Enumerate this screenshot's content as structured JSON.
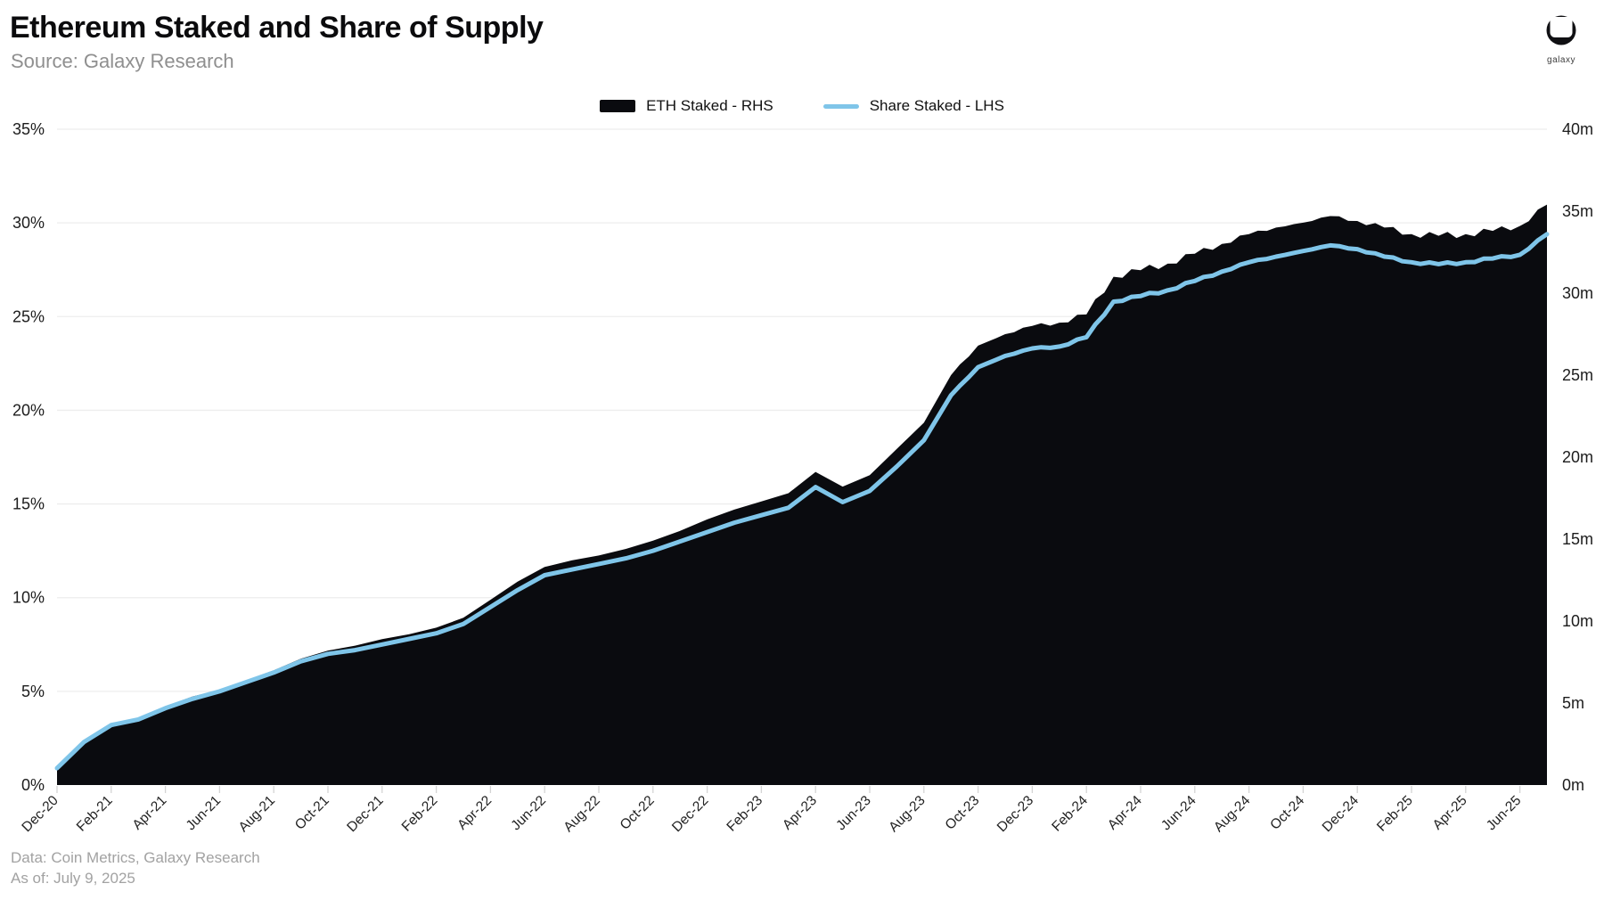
{
  "header": {
    "title": "Ethereum Staked and Share of Supply",
    "source": "Source: Galaxy Research",
    "logo_text": "galaxy"
  },
  "legend": [
    {
      "label": "ETH Staked - RHS",
      "color": "#0a0b0f",
      "type": "area"
    },
    {
      "label": "Share Staked - LHS",
      "color": "#7fc5e9",
      "type": "line"
    }
  ],
  "footer": {
    "data_line": "Data: Coin Metrics, Galaxy Research",
    "as_of_line": "As of: July 9, 2025"
  },
  "chart_data": {
    "type": "area",
    "title": "Ethereum Staked and Share of Supply",
    "grid": "horizontal",
    "legend_position": "top-center",
    "x": [
      "Dec-20",
      "Jan-21",
      "Feb-21",
      "Mar-21",
      "Apr-21",
      "May-21",
      "Jun-21",
      "Jul-21",
      "Aug-21",
      "Sep-21",
      "Oct-21",
      "Nov-21",
      "Dec-21",
      "Jan-22",
      "Feb-22",
      "Mar-22",
      "Apr-22",
      "May-22",
      "Jun-22",
      "Jul-22",
      "Aug-22",
      "Sep-22",
      "Oct-22",
      "Nov-22",
      "Dec-22",
      "Jan-23",
      "Feb-23",
      "Mar-23",
      "Apr-23",
      "May-23",
      "Jun-23",
      "Jul-23",
      "Aug-23",
      "Sep-23",
      "Oct-23",
      "Nov-23",
      "Dec-23",
      "Jan-24",
      "Feb-24",
      "Mar-24",
      "Apr-24",
      "May-24",
      "Jun-24",
      "Jul-24",
      "Aug-24",
      "Sep-24",
      "Oct-24",
      "Nov-24",
      "Dec-24",
      "Jan-25",
      "Feb-25",
      "Mar-25",
      "Apr-25",
      "May-25",
      "Jun-25",
      "Jul-25"
    ],
    "x_label_every": 2,
    "x_tick_labels": [
      "Dec-20",
      "Feb-21",
      "Apr-21",
      "Jun-21",
      "Aug-21",
      "Oct-21",
      "Dec-21",
      "Feb-22",
      "Apr-22",
      "Jun-22",
      "Aug-22",
      "Oct-22",
      "Dec-22",
      "Feb-23",
      "Apr-23",
      "Jun-23",
      "Aug-23",
      "Oct-23",
      "Dec-23",
      "Feb-24",
      "Apr-24",
      "Jun-24",
      "Aug-24",
      "Oct-24",
      "Dec-24",
      "Feb-25",
      "Apr-25",
      "Jun-25"
    ],
    "series": [
      {
        "name": "ETH Staked - RHS",
        "type": "area",
        "axis": "right",
        "unit": "million ETH",
        "color": "#0a0b0f",
        "values": [
          0.9,
          2.6,
          3.7,
          4.1,
          4.8,
          5.4,
          5.8,
          6.4,
          7.0,
          7.7,
          8.2,
          8.5,
          8.9,
          9.2,
          9.6,
          10.2,
          11.3,
          12.4,
          13.3,
          13.7,
          14.0,
          14.4,
          14.9,
          15.5,
          16.2,
          16.8,
          17.3,
          17.8,
          19.1,
          18.2,
          18.9,
          20.5,
          22.1,
          25.0,
          26.8,
          27.5,
          28.0,
          28.2,
          28.7,
          31.0,
          31.4,
          31.8,
          32.4,
          33.0,
          33.6,
          34.0,
          34.3,
          34.7,
          34.4,
          34.0,
          33.6,
          33.5,
          33.6,
          33.8,
          34.1,
          35.4
        ]
      },
      {
        "name": "Share Staked - LHS",
        "type": "line",
        "axis": "left",
        "unit": "%",
        "color": "#7fc5e9",
        "values": [
          0.9,
          2.3,
          3.2,
          3.5,
          4.1,
          4.6,
          5.0,
          5.5,
          6.0,
          6.6,
          7.0,
          7.2,
          7.5,
          7.8,
          8.1,
          8.6,
          9.5,
          10.4,
          11.2,
          11.5,
          11.8,
          12.1,
          12.5,
          13.0,
          13.5,
          14.0,
          14.4,
          14.8,
          15.9,
          15.1,
          15.7,
          17.0,
          18.4,
          20.8,
          22.3,
          22.9,
          23.3,
          23.4,
          23.9,
          25.8,
          26.1,
          26.4,
          26.9,
          27.4,
          27.9,
          28.2,
          28.5,
          28.8,
          28.6,
          28.2,
          27.9,
          27.8,
          27.9,
          28.1,
          28.3,
          29.4
        ]
      }
    ],
    "left_axis": {
      "min": 0,
      "max": 35,
      "step": 5,
      "suffix": "%",
      "tick_labels": [
        "0%",
        "5%",
        "10%",
        "15%",
        "20%",
        "25%",
        "30%",
        "35%"
      ]
    },
    "right_axis": {
      "min": 0,
      "max": 40,
      "step": 5,
      "suffix": "m",
      "tick_labels": [
        "0m",
        "5m",
        "10m",
        "15m",
        "20m",
        "25m",
        "30m",
        "35m",
        "40m"
      ]
    }
  },
  "colors": {
    "grid": "#ededed",
    "tick": "#d4d4d4",
    "axis_text": "#1c1c1c",
    "background": "#ffffff"
  }
}
